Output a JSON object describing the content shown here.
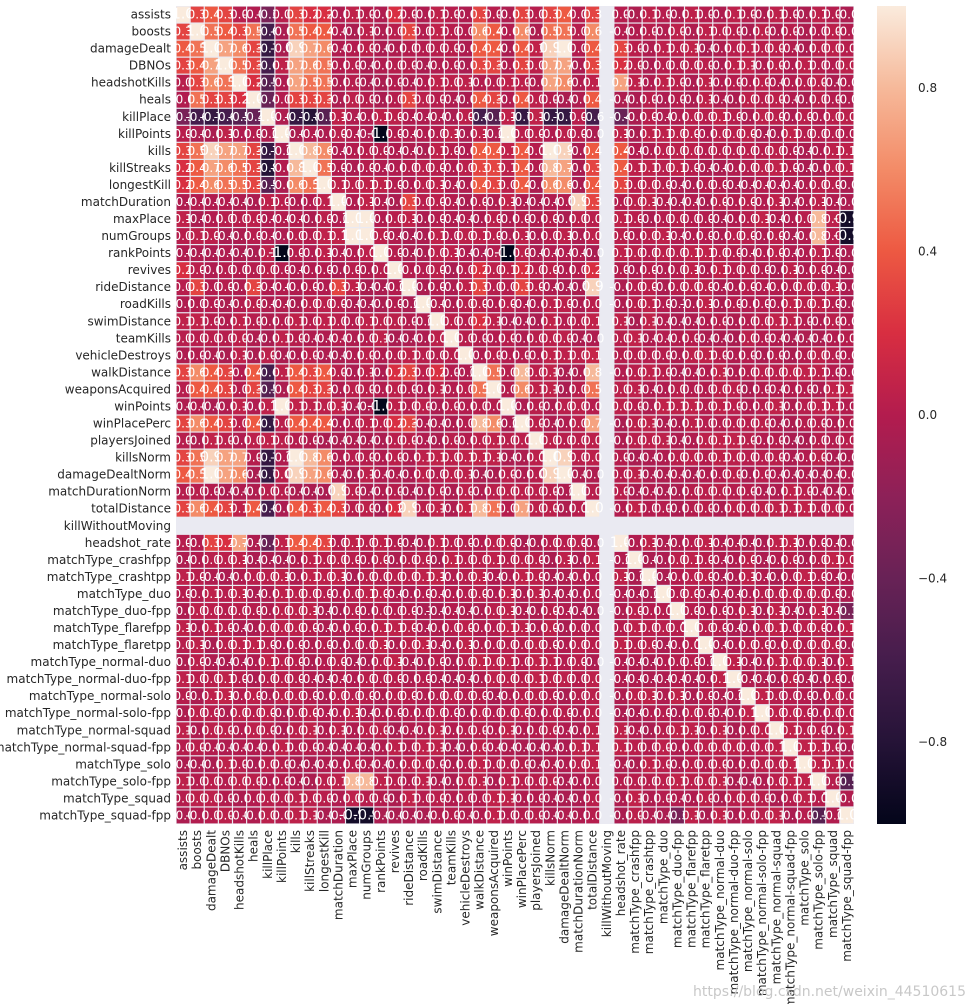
{
  "chart_data": {
    "type": "heatmap",
    "title": "",
    "xlabel": "",
    "ylabel": "",
    "variables": [
      "assists",
      "boosts",
      "damageDealt",
      "DBNOs",
      "headshotKills",
      "heals",
      "killPlace",
      "killPoints",
      "kills",
      "killStreaks",
      "longestKill",
      "matchDuration",
      "maxPlace",
      "numGroups",
      "rankPoints",
      "revives",
      "rideDistance",
      "roadKills",
      "swimDistance",
      "teamKills",
      "vehicleDestroys",
      "walkDistance",
      "weaponsAcquired",
      "winPoints",
      "winPlacePerc",
      "playersJoined",
      "killsNorm",
      "damageDealtNorm",
      "matchDurationNorm",
      "totalDistance",
      "killWithoutMoving",
      "headshot_rate",
      "matchType_crashfpp",
      "matchType_crashtpp",
      "matchType_duo",
      "matchType_duo-fpp",
      "matchType_flarefpp",
      "matchType_flaretpp",
      "matchType_normal-duo",
      "matchType_normal-duo-fpp",
      "matchType_normal-solo",
      "matchType_normal-solo-fpp",
      "matchType_normal-squad",
      "matchType_normal-squad-fpp",
      "matchType_solo",
      "matchType_solo-fpp",
      "matchType_squad",
      "matchType_squad-fpp"
    ],
    "nan_variable": "killWithoutMoving",
    "value_range": [
      -1,
      1
    ],
    "annotate": true,
    "grid": "white lines between cells",
    "colormap": "rocket",
    "colorbar_ticks": [
      "0.8",
      "0.4",
      "0.0",
      "−0.4",
      "−0.8"
    ],
    "colorbar_tick_values": [
      0.8,
      0.4,
      0.0,
      -0.4,
      -0.8
    ],
    "strong_correlations": [
      [
        "assists",
        "boosts",
        0.3
      ],
      [
        "assists",
        "damageDealt",
        0.4
      ],
      [
        "assists",
        "DBNOs",
        0.3
      ],
      [
        "assists",
        "killPlace",
        -0.3
      ],
      [
        "assists",
        "kills",
        0.3
      ],
      [
        "assists",
        "killStreaks",
        0.2
      ],
      [
        "assists",
        "longestKill",
        0.2
      ],
      [
        "assists",
        "revives",
        0.2
      ],
      [
        "assists",
        "walkDistance",
        0.3
      ],
      [
        "assists",
        "winPlacePerc",
        0.3
      ],
      [
        "assists",
        "killsNorm",
        0.3
      ],
      [
        "assists",
        "damageDealtNorm",
        0.4
      ],
      [
        "assists",
        "totalDistance",
        0.3
      ],
      [
        "boosts",
        "damageDealt",
        0.5
      ],
      [
        "boosts",
        "DBNOs",
        0.4
      ],
      [
        "boosts",
        "headshotKills",
        0.3
      ],
      [
        "boosts",
        "heals",
        0.5
      ],
      [
        "boosts",
        "killPlace",
        -0.6
      ],
      [
        "boosts",
        "kills",
        0.5
      ],
      [
        "boosts",
        "killStreaks",
        0.4
      ],
      [
        "boosts",
        "longestKill",
        0.4
      ],
      [
        "boosts",
        "rideDistance",
        0.3
      ],
      [
        "boosts",
        "walkDistance",
        0.6
      ],
      [
        "boosts",
        "weaponsAcquired",
        0.4
      ],
      [
        "boosts",
        "winPlacePerc",
        0.6
      ],
      [
        "boosts",
        "killsNorm",
        0.5
      ],
      [
        "boosts",
        "damageDealtNorm",
        0.5
      ],
      [
        "boosts",
        "totalDistance",
        0.6
      ],
      [
        "damageDealt",
        "DBNOs",
        0.7
      ],
      [
        "damageDealt",
        "headshotKills",
        0.6
      ],
      [
        "damageDealt",
        "heals",
        0.3
      ],
      [
        "damageDealt",
        "killPlace",
        -0.7
      ],
      [
        "damageDealt",
        "kills",
        0.9
      ],
      [
        "damageDealt",
        "killStreaks",
        0.7
      ],
      [
        "damageDealt",
        "longestKill",
        0.6
      ],
      [
        "damageDealt",
        "walkDistance",
        0.4
      ],
      [
        "damageDealt",
        "weaponsAcquired",
        0.4
      ],
      [
        "damageDealt",
        "winPlacePerc",
        0.4
      ],
      [
        "damageDealt",
        "killsNorm",
        0.9
      ],
      [
        "damageDealt",
        "damageDealtNorm",
        1.0
      ],
      [
        "damageDealt",
        "totalDistance",
        0.4
      ],
      [
        "damageDealt",
        "headshot_rate",
        0.3
      ],
      [
        "DBNOs",
        "headshotKills",
        0.5
      ],
      [
        "DBNOs",
        "heals",
        0.3
      ],
      [
        "DBNOs",
        "killPlace",
        -0.6
      ],
      [
        "DBNOs",
        "kills",
        0.7
      ],
      [
        "DBNOs",
        "killStreaks",
        0.6
      ],
      [
        "DBNOs",
        "longestKill",
        0.5
      ],
      [
        "DBNOs",
        "walkDistance",
        0.3
      ],
      [
        "DBNOs",
        "weaponsAcquired",
        0.3
      ],
      [
        "DBNOs",
        "winPlacePerc",
        0.3
      ],
      [
        "DBNOs",
        "killsNorm",
        0.7
      ],
      [
        "DBNOs",
        "damageDealtNorm",
        0.7
      ],
      [
        "DBNOs",
        "totalDistance",
        0.3
      ],
      [
        "DBNOs",
        "headshot_rate",
        0.2
      ],
      [
        "headshotKills",
        "heals",
        0.2
      ],
      [
        "headshotKills",
        "killPlace",
        -0.5
      ],
      [
        "headshotKills",
        "kills",
        0.7
      ],
      [
        "headshotKills",
        "killStreaks",
        0.5
      ],
      [
        "headshotKills",
        "longestKill",
        0.5
      ],
      [
        "headshotKills",
        "killsNorm",
        0.7
      ],
      [
        "headshotKills",
        "damageDealtNorm",
        0.6
      ],
      [
        "headshotKills",
        "headshot_rate",
        0.7
      ],
      [
        "heals",
        "killPlace",
        -0.4
      ],
      [
        "heals",
        "kills",
        0.3
      ],
      [
        "heals",
        "killStreaks",
        0.3
      ],
      [
        "heals",
        "longestKill",
        0.3
      ],
      [
        "heals",
        "rideDistance",
        0.3
      ],
      [
        "heals",
        "walkDistance",
        0.4
      ],
      [
        "heals",
        "weaponsAcquired",
        0.3
      ],
      [
        "heals",
        "winPlacePerc",
        0.4
      ],
      [
        "heals",
        "totalDistance",
        0.4
      ],
      [
        "killPlace",
        "kills",
        -0.7
      ],
      [
        "killPlace",
        "killStreaks",
        -0.8
      ],
      [
        "killPlace",
        "longestKill",
        -0.5
      ],
      [
        "killPlace",
        "walkDistance",
        -0.6
      ],
      [
        "killPlace",
        "weaponsAcquired",
        -0.5
      ],
      [
        "killPlace",
        "winPlacePerc",
        -0.7
      ],
      [
        "killPlace",
        "killsNorm",
        -0.7
      ],
      [
        "killPlace",
        "damageDealtNorm",
        -0.7
      ],
      [
        "killPlace",
        "totalDistance",
        -0.6
      ],
      [
        "killPlace",
        "headshot_rate",
        -0.4
      ],
      [
        "killPoints",
        "rankPoints",
        -1.0
      ],
      [
        "killPoints",
        "winPoints",
        1.0
      ],
      [
        "kills",
        "killStreaks",
        0.8
      ],
      [
        "kills",
        "longestKill",
        0.6
      ],
      [
        "kills",
        "walkDistance",
        0.4
      ],
      [
        "kills",
        "weaponsAcquired",
        0.4
      ],
      [
        "kills",
        "winPlacePerc",
        0.4
      ],
      [
        "kills",
        "killsNorm",
        1.0
      ],
      [
        "kills",
        "damageDealtNorm",
        0.9
      ],
      [
        "kills",
        "totalDistance",
        0.4
      ],
      [
        "kills",
        "headshot_rate",
        0.4
      ],
      [
        "killStreaks",
        "longestKill",
        0.5
      ],
      [
        "killStreaks",
        "walkDistance",
        0.3
      ],
      [
        "killStreaks",
        "weaponsAcquired",
        0.3
      ],
      [
        "killStreaks",
        "winPlacePerc",
        0.4
      ],
      [
        "killStreaks",
        "killsNorm",
        0.8
      ],
      [
        "killStreaks",
        "damageDealtNorm",
        0.7
      ],
      [
        "killStreaks",
        "totalDistance",
        0.3
      ],
      [
        "killStreaks",
        "headshot_rate",
        0.4
      ],
      [
        "longestKill",
        "walkDistance",
        0.4
      ],
      [
        "longestKill",
        "weaponsAcquired",
        0.3
      ],
      [
        "longestKill",
        "winPlacePerc",
        0.4
      ],
      [
        "longestKill",
        "killsNorm",
        0.6
      ],
      [
        "longestKill",
        "damageDealtNorm",
        0.6
      ],
      [
        "longestKill",
        "totalDistance",
        0.4
      ],
      [
        "longestKill",
        "headshot_rate",
        0.3
      ],
      [
        "matchDuration",
        "rideDistance",
        0.3
      ],
      [
        "matchDuration",
        "matchDurationNorm",
        0.9
      ],
      [
        "matchDuration",
        "totalDistance",
        0.3
      ],
      [
        "maxPlace",
        "numGroups",
        1.0
      ],
      [
        "maxPlace",
        "matchType_solo-fpp",
        0.8
      ],
      [
        "maxPlace",
        "matchType_squad-fpp",
        -0.9
      ],
      [
        "numGroups",
        "matchType_solo-fpp",
        0.8
      ],
      [
        "numGroups",
        "matchType_squad-fpp",
        -0.9
      ],
      [
        "rankPoints",
        "winPoints",
        -1.0
      ],
      [
        "revives",
        "walkDistance",
        0.2
      ],
      [
        "revives",
        "winPlacePerc",
        0.2
      ],
      [
        "revives",
        "totalDistance",
        0.2
      ],
      [
        "rideDistance",
        "walkDistance",
        0.3
      ],
      [
        "rideDistance",
        "winPlacePerc",
        0.3
      ],
      [
        "rideDistance",
        "totalDistance",
        0.9
      ],
      [
        "swimDistance",
        "walkDistance",
        0.2
      ],
      [
        "vehicleDestroys",
        "totalDistance",
        0.1
      ],
      [
        "walkDistance",
        "weaponsAcquired",
        0.5
      ],
      [
        "walkDistance",
        "winPlacePerc",
        0.8
      ],
      [
        "walkDistance",
        "totalDistance",
        0.8
      ],
      [
        "weaponsAcquired",
        "winPlacePerc",
        0.6
      ],
      [
        "weaponsAcquired",
        "totalDistance",
        0.5
      ],
      [
        "winPlacePerc",
        "totalDistance",
        0.7
      ],
      [
        "killsNorm",
        "damageDealtNorm",
        0.9
      ],
      [
        "damageDealtNorm",
        "killsNorm",
        0.9
      ],
      [
        "matchType_solo-fpp",
        "matchType_squad-fpp",
        -0.5
      ],
      [
        "matchType_duo-fpp",
        "matchType_squad-fpp",
        -0.3
      ]
    ]
  },
  "watermark": "https://blog.csdn.net/weixin_44510615"
}
